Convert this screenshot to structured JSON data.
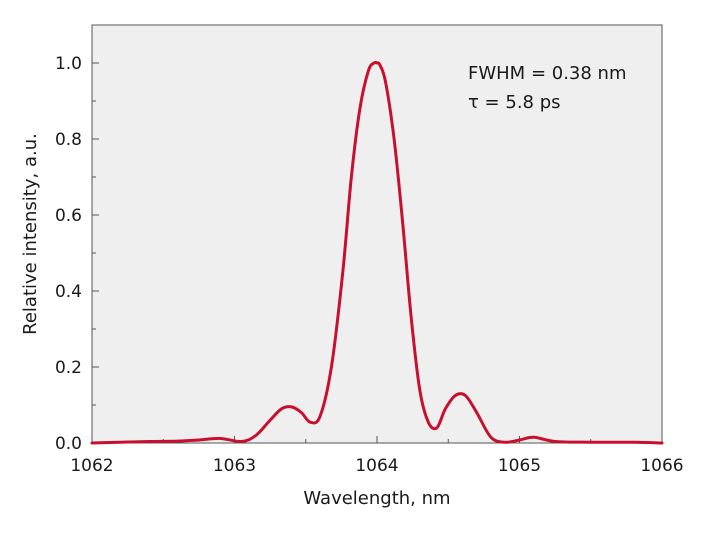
{
  "chart_data": {
    "type": "line",
    "title": "",
    "xlabel": "Wavelength, nm",
    "ylabel": "Relative intensity, a.u.",
    "xlim": [
      1062,
      1066
    ],
    "ylim": [
      0,
      1.1
    ],
    "xticks": [
      "1062",
      "1063",
      "1064",
      "1065",
      "1066"
    ],
    "yticks": [
      "0.0",
      "0.2",
      "0.4",
      "0.6",
      "0.8",
      "1.0"
    ],
    "grid": false,
    "legend": "none",
    "annotations": [
      "FWHM = 0.38 nm",
      "τ = 5.8 ps"
    ],
    "colors": {
      "line": "#c8102e",
      "plot_background": "#efefef",
      "axis": "#555555"
    },
    "series": [
      {
        "x": [
          1062.0,
          1062.2,
          1062.4,
          1062.6,
          1062.75,
          1062.9,
          1063.05,
          1063.15,
          1063.25,
          1063.33,
          1063.4,
          1063.47,
          1063.53,
          1063.6,
          1063.68,
          1063.76,
          1063.82,
          1063.88,
          1063.94,
          1063.98,
          1064.0,
          1064.02,
          1064.06,
          1064.12,
          1064.18,
          1064.24,
          1064.3,
          1064.36,
          1064.42,
          1064.48,
          1064.55,
          1064.62,
          1064.7,
          1064.8,
          1064.9,
          1065.0,
          1065.1,
          1065.25,
          1065.5,
          1065.8,
          1066.0
        ],
        "y": [
          0.0,
          0.002,
          0.004,
          0.005,
          0.008,
          0.012,
          0.004,
          0.02,
          0.06,
          0.09,
          0.095,
          0.08,
          0.055,
          0.07,
          0.2,
          0.45,
          0.7,
          0.88,
          0.98,
          1.0,
          1.0,
          0.995,
          0.95,
          0.8,
          0.58,
          0.33,
          0.14,
          0.055,
          0.04,
          0.09,
          0.125,
          0.125,
          0.08,
          0.015,
          0.002,
          0.008,
          0.015,
          0.004,
          0.002,
          0.002,
          0.0
        ]
      }
    ]
  }
}
